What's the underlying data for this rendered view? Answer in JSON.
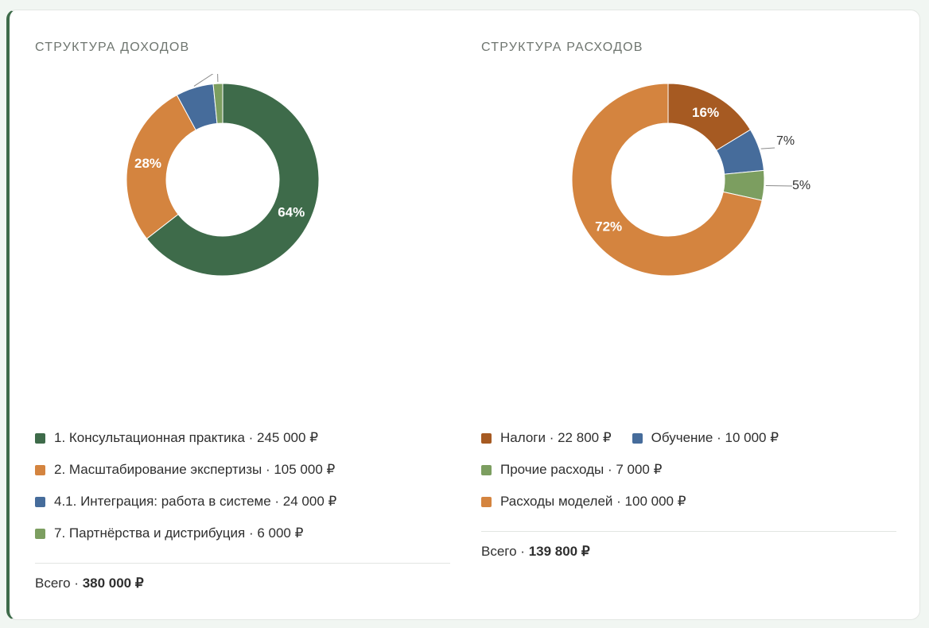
{
  "chart_data": [
    {
      "type": "pie",
      "title": "СТРУКТУРА ДОХОДОВ",
      "total_label": "Всего",
      "total_value": "380 000 ₽",
      "slices": [
        {
          "label": "1. Консультационная практика",
          "amount_text": "245 000 ₽",
          "value": 245000,
          "pct_label": "64%",
          "color": "#3e6b4a"
        },
        {
          "label": "2. Масштабирование экспертизы",
          "amount_text": "105 000 ₽",
          "value": 105000,
          "pct_label": "28%",
          "color": "#d4843f"
        },
        {
          "label": "4.1. Интеграция: работа в системе",
          "amount_text": "24 000 ₽",
          "value": 24000,
          "pct_label": "6%",
          "color": "#466c9b"
        },
        {
          "label": "7. Партнёрства и дистрибуция",
          "amount_text": "6 000 ₽",
          "value": 6000,
          "pct_label": "2%",
          "color": "#7c9e60"
        }
      ]
    },
    {
      "type": "pie",
      "title": "СТРУКТУРА РАСХОДОВ",
      "total_label": "Всего",
      "total_value": "139 800 ₽",
      "slices": [
        {
          "label": "Налоги",
          "amount_text": "22 800 ₽",
          "value": 22800,
          "pct_label": "16%",
          "color": "#a65a22"
        },
        {
          "label": "Обучение",
          "amount_text": "10 000 ₽",
          "value": 10000,
          "pct_label": "7%",
          "color": "#466c9b"
        },
        {
          "label": "Прочие расходы",
          "amount_text": "7 000 ₽",
          "value": 7000,
          "pct_label": "5%",
          "color": "#7c9e60"
        },
        {
          "label": "Расходы моделей",
          "amount_text": "100 000 ₽",
          "value": 100000,
          "pct_label": "72%",
          "color": "#d4843f"
        }
      ]
    }
  ]
}
